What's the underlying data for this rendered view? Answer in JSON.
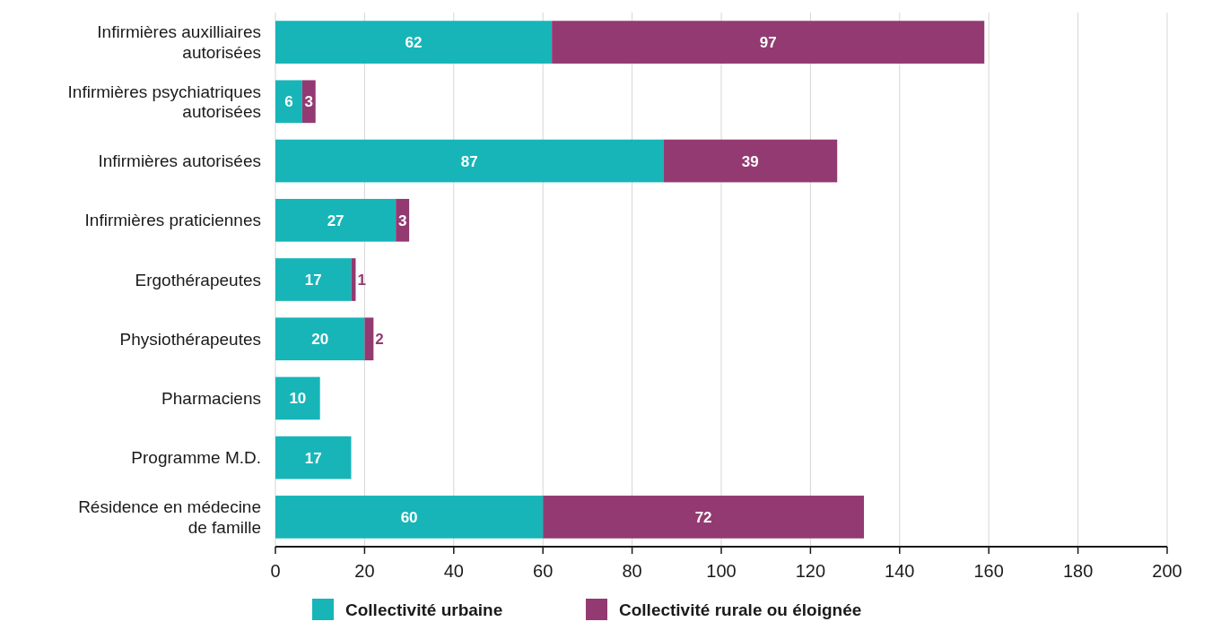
{
  "chart_data": {
    "type": "bar",
    "orientation": "horizontal",
    "stacked": true,
    "categories": [
      "Infirmières auxilliaires autorisées",
      "Infirmières psychiatriques autorisées",
      "Infirmières autorisées",
      "Infirmières praticiennes",
      "Ergothérapeutes",
      "Physiothérapeutes",
      "Pharmaciens",
      "Programme M.D.",
      "Résidence en médecine de famille"
    ],
    "series": [
      {
        "name": "Collectivité urbaine",
        "color": "#17b5b8",
        "values": [
          62,
          6,
          87,
          27,
          17,
          20,
          10,
          17,
          60
        ]
      },
      {
        "name": "Collectivité rurale ou éloignée",
        "color": "#933a72",
        "values": [
          97,
          3,
          39,
          3,
          1,
          2,
          null,
          null,
          72
        ]
      }
    ],
    "xlim": [
      0,
      200
    ],
    "xticks": [
      0,
      20,
      40,
      60,
      80,
      100,
      120,
      140,
      160,
      180,
      200
    ],
    "grid": "x",
    "legend": "bottom",
    "data_labels": true
  }
}
